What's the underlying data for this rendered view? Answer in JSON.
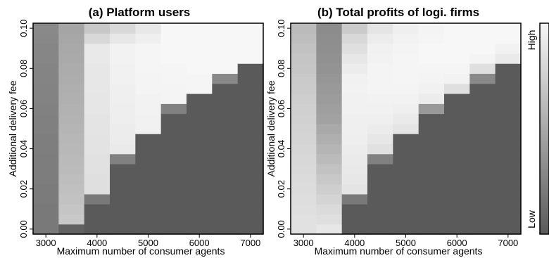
{
  "chart_data": [
    {
      "type": "heatmap",
      "title": "(a) Platform users",
      "xlabel": "Maximum number of consumer agents",
      "ylabel": "Additional delivery fee",
      "x": [
        3000,
        3500,
        4000,
        4500,
        5000,
        5500,
        6000,
        6500,
        7000
      ],
      "x_ticks": [
        "3000",
        "4000",
        "5000",
        "6000",
        "7000"
      ],
      "y_ticks": [
        "0.00",
        "0.02",
        "0.04",
        "0.06",
        "0.08",
        "0.10"
      ],
      "xlim": [
        2750,
        7250
      ],
      "ylim": [
        -0.0025,
        0.1025
      ],
      "y_step": 0.005,
      "scale": "relative level, 0 = Low (dark), 1 = High (light)",
      "levels": [
        [
          0.2,
          0.2,
          0.2,
          0.21,
          0.21,
          0.22,
          0.22,
          0.22,
          0.23,
          0.23,
          0.24,
          0.24,
          0.25,
          0.26,
          0.26,
          0.27,
          0.27,
          0.28,
          0.28,
          0.29,
          0.3
        ],
        [
          0.05,
          0.7,
          0.68,
          0.66,
          0.65,
          0.64,
          0.62,
          0.61,
          0.6,
          0.59,
          0.58,
          0.57,
          0.56,
          0.55,
          0.54,
          0.53,
          0.52,
          0.51,
          0.5,
          0.49,
          0.48
        ],
        [
          0.0,
          0.0,
          0.0,
          0.2,
          0.85,
          0.85,
          0.86,
          0.86,
          0.87,
          0.87,
          0.88,
          0.88,
          0.89,
          0.89,
          0.9,
          0.9,
          0.9,
          0.91,
          0.91,
          0.8,
          0.7
        ],
        [
          0.0,
          0.0,
          0.0,
          0.0,
          0.0,
          0.0,
          0.0,
          0.25,
          0.92,
          0.93,
          0.93,
          0.94,
          0.94,
          0.95,
          0.95,
          0.96,
          0.96,
          0.97,
          0.97,
          0.9,
          0.8
        ],
        [
          0.0,
          0.0,
          0.0,
          0.0,
          0.0,
          0.0,
          0.0,
          0.0,
          0.0,
          0.0,
          0.96,
          0.96,
          0.97,
          0.97,
          0.98,
          0.98,
          0.99,
          0.99,
          0.99,
          0.95,
          0.9
        ],
        [
          0.0,
          0.0,
          0.0,
          0.0,
          0.0,
          0.0,
          0.0,
          0.0,
          0.0,
          0.0,
          0.0,
          0.0,
          0.25,
          0.98,
          0.98,
          0.99,
          0.99,
          1.0,
          1.0,
          1.0,
          1.0
        ],
        [
          0.0,
          0.0,
          0.0,
          0.0,
          0.0,
          0.0,
          0.0,
          0.0,
          0.0,
          0.0,
          0.0,
          0.0,
          0.0,
          0.0,
          0.99,
          0.99,
          1.0,
          1.0,
          1.0,
          1.0,
          1.0
        ],
        [
          0.0,
          0.0,
          0.0,
          0.0,
          0.0,
          0.0,
          0.0,
          0.0,
          0.0,
          0.0,
          0.0,
          0.0,
          0.0,
          0.0,
          0.0,
          0.3,
          1.0,
          1.0,
          1.0,
          1.0,
          1.0
        ],
        [
          0.0,
          0.0,
          0.0,
          0.0,
          0.0,
          0.0,
          0.0,
          0.0,
          0.0,
          0.0,
          0.0,
          0.0,
          0.0,
          0.0,
          0.0,
          0.0,
          0.0,
          1.0,
          1.0,
          1.0,
          1.0
        ]
      ]
    },
    {
      "type": "heatmap",
      "title": "(b) Total profits of logi. firms",
      "xlabel": "Maximum number of consumer agents",
      "ylabel": "Additional delivery fee",
      "x": [
        3000,
        3500,
        4000,
        4500,
        5000,
        5500,
        6000,
        6500,
        7000
      ],
      "x_ticks": [
        "3000",
        "4000",
        "5000",
        "6000",
        "7000"
      ],
      "y_ticks": [
        "0.00",
        "0.02",
        "0.04",
        "0.06",
        "0.08",
        "0.10"
      ],
      "xlim": [
        2750,
        7250
      ],
      "ylim": [
        -0.0025,
        0.1025
      ],
      "y_step": 0.005,
      "scale": "relative level, 0 = Low (dark), 1 = High (light)",
      "levels": [
        [
          0.86,
          0.86,
          0.85,
          0.84,
          0.83,
          0.82,
          0.81,
          0.8,
          0.79,
          0.78,
          0.77,
          0.76,
          0.75,
          0.74,
          0.72,
          0.71,
          0.69,
          0.68,
          0.66,
          0.64,
          0.62
        ],
        [
          0.9,
          0.85,
          0.82,
          0.78,
          0.74,
          0.7,
          0.66,
          0.62,
          0.58,
          0.54,
          0.5,
          0.46,
          0.44,
          0.42,
          0.4,
          0.38,
          0.36,
          0.35,
          0.34,
          0.33,
          0.32
        ],
        [
          0.0,
          0.0,
          0.0,
          0.2,
          0.88,
          0.9,
          0.91,
          0.92,
          0.93,
          0.94,
          0.95,
          0.95,
          0.96,
          0.96,
          0.97,
          0.96,
          0.93,
          0.9,
          0.85,
          0.8,
          0.72
        ],
        [
          0.0,
          0.0,
          0.0,
          0.0,
          0.0,
          0.0,
          0.0,
          0.25,
          0.86,
          0.9,
          0.93,
          0.95,
          0.96,
          0.97,
          0.98,
          0.98,
          0.98,
          0.97,
          0.96,
          0.93,
          0.88
        ],
        [
          0.0,
          0.0,
          0.0,
          0.0,
          0.0,
          0.0,
          0.0,
          0.0,
          0.0,
          0.0,
          0.88,
          0.92,
          0.95,
          0.97,
          0.98,
          0.99,
          0.99,
          0.99,
          0.98,
          0.97,
          0.95
        ],
        [
          0.0,
          0.0,
          0.0,
          0.0,
          0.0,
          0.0,
          0.0,
          0.0,
          0.0,
          0.0,
          0.0,
          0.0,
          0.4,
          0.93,
          0.96,
          0.98,
          0.99,
          1.0,
          1.0,
          0.99,
          0.98
        ],
        [
          0.0,
          0.0,
          0.0,
          0.0,
          0.0,
          0.0,
          0.0,
          0.0,
          0.0,
          0.0,
          0.0,
          0.0,
          0.0,
          0.0,
          0.85,
          0.97,
          0.99,
          1.0,
          1.0,
          1.0,
          1.0
        ],
        [
          0.0,
          0.0,
          0.0,
          0.0,
          0.0,
          0.0,
          0.0,
          0.0,
          0.0,
          0.0,
          0.0,
          0.0,
          0.0,
          0.0,
          0.0,
          0.3,
          0.85,
          0.98,
          1.0,
          1.0,
          1.0
        ],
        [
          0.0,
          0.0,
          0.0,
          0.0,
          0.0,
          0.0,
          0.0,
          0.0,
          0.0,
          0.0,
          0.0,
          0.0,
          0.0,
          0.0,
          0.0,
          0.0,
          0.0,
          0.92,
          0.97,
          1.0,
          1.0
        ]
      ]
    }
  ],
  "colorbar": {
    "high_label": "High",
    "low_label": "Low",
    "low_color": "#5a5a5a",
    "high_color": "#f7f7f7"
  }
}
